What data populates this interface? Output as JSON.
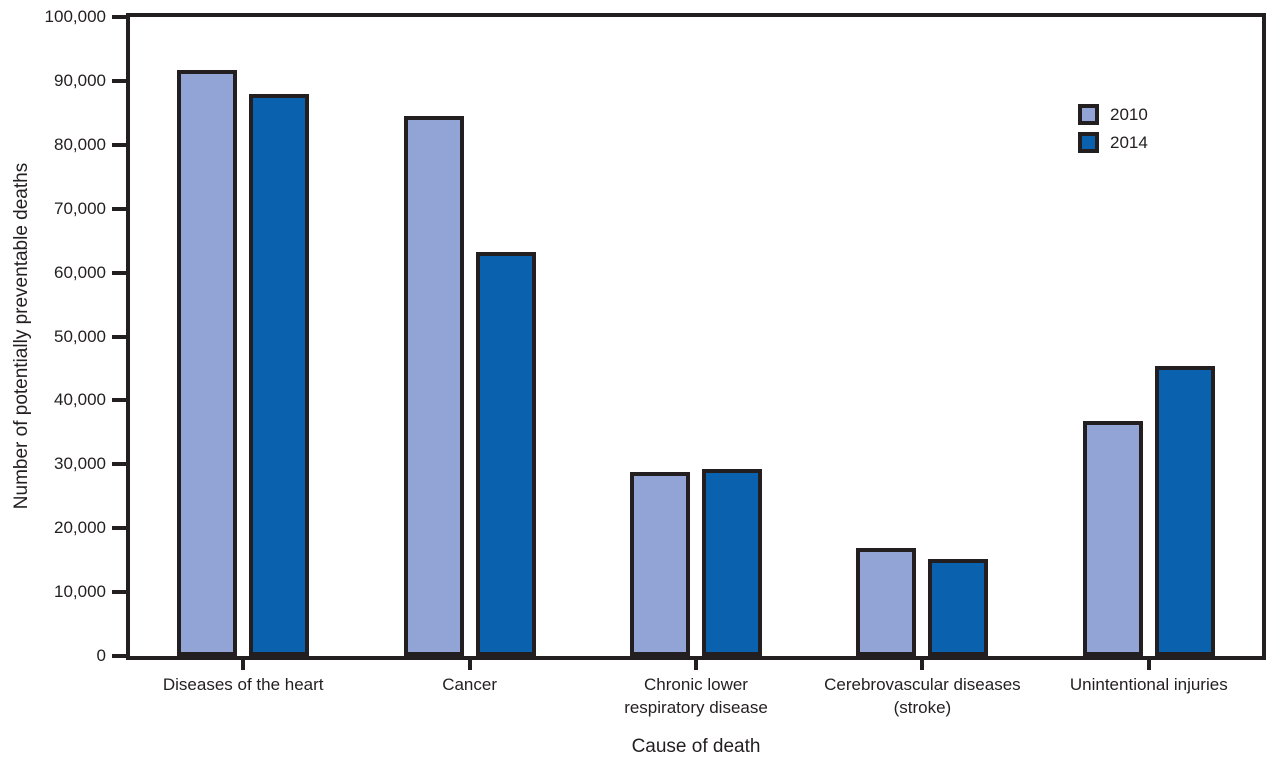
{
  "chart_data": {
    "type": "bar",
    "title": "",
    "xlabel": "Cause of death",
    "ylabel": "Number of potentially preventable deaths",
    "ylim": [
      0,
      100000
    ],
    "ytick_interval": 10000,
    "ytick_labels": [
      "0",
      "10,000",
      "20,000",
      "30,000",
      "40,000",
      "50,000",
      "60,000",
      "70,000",
      "80,000",
      "90,000",
      "100,000"
    ],
    "grid": false,
    "legend_position": "top-right-inside",
    "bar_border_color": "#231f20",
    "axis_color": "#231f20",
    "categories": [
      "Diseases of the heart",
      "Cancer",
      "Chronic lower\nrespiratory disease",
      "Cerebrovascular diseases\n(stroke)",
      "Unintentional injuries"
    ],
    "series": [
      {
        "name": "2010",
        "color": "#92a4d6",
        "values": [
          91757,
          84443,
          28831,
          16973,
          36836
        ]
      },
      {
        "name": "2014",
        "color": "#0a62ae",
        "values": [
          87950,
          63209,
          29232,
          15175,
          45331
        ]
      }
    ]
  }
}
